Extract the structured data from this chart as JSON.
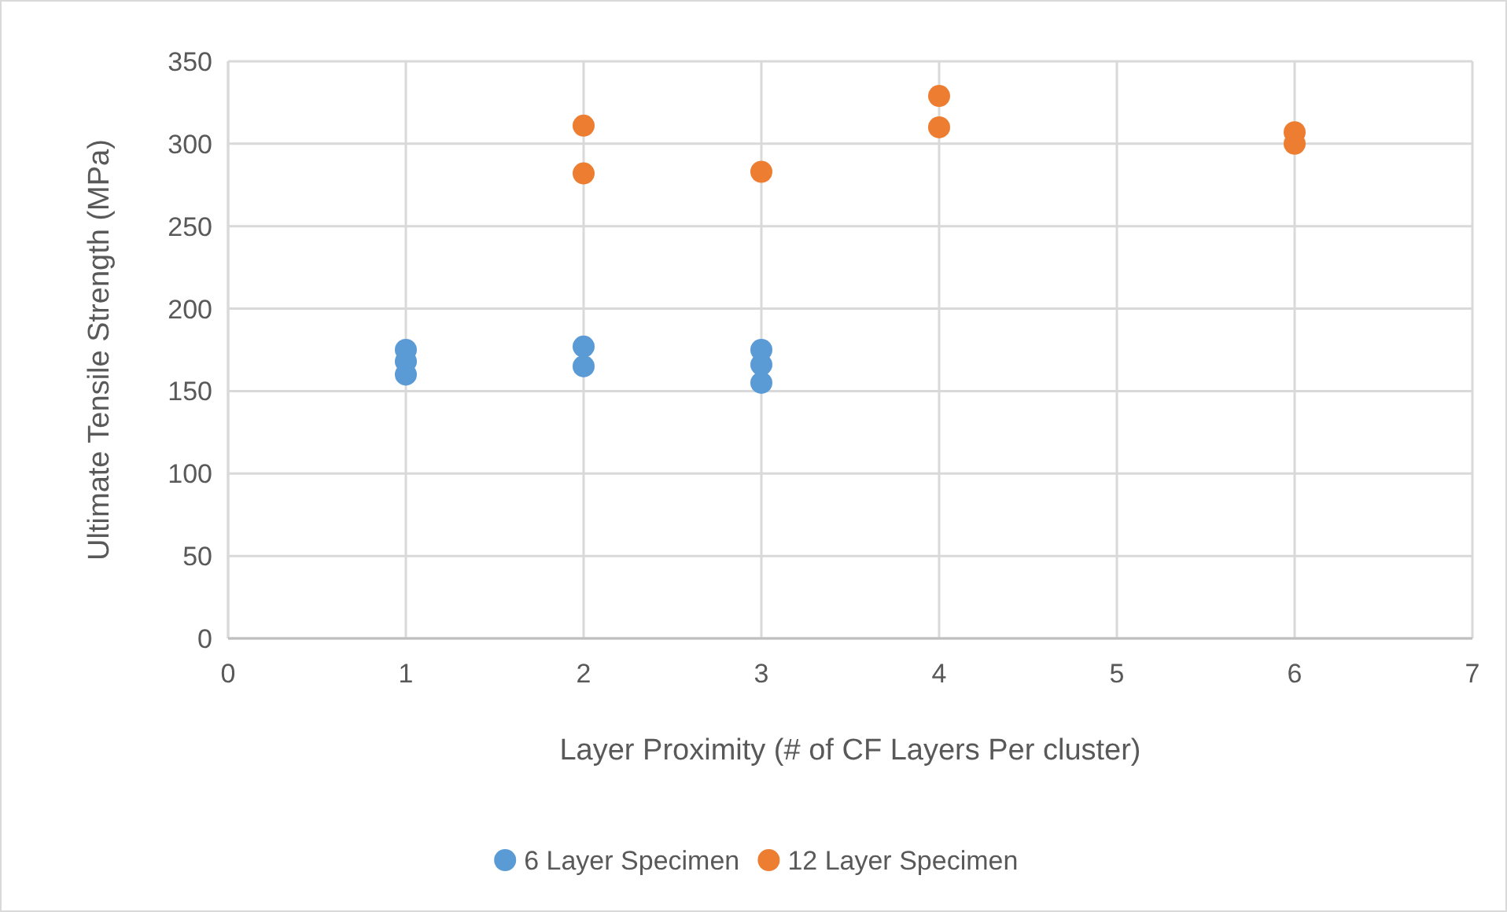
{
  "chart_data": {
    "type": "scatter",
    "xlabel": "Layer Proximity (# of CF Layers Per cluster)",
    "ylabel": "Ultimate Tensile Strength (MPa)",
    "xlim": [
      0,
      7
    ],
    "xticks": [
      0,
      1,
      2,
      3,
      4,
      5,
      6,
      7
    ],
    "ylim": [
      0,
      350
    ],
    "yticks": [
      0,
      50,
      100,
      150,
      200,
      250,
      300,
      350
    ],
    "grid": true,
    "legend": "bottom",
    "marker": "circle",
    "series": [
      {
        "name": "6 Layer Specimen",
        "color": "#5b9bd5",
        "x": [
          1,
          1,
          1,
          2,
          2,
          3,
          3,
          3
        ],
        "values": [
          175,
          168,
          160,
          177,
          165,
          175,
          166,
          155
        ]
      },
      {
        "name": "12 Layer Specimen",
        "color": "#ed7d31",
        "x": [
          2,
          2,
          3,
          4,
          4,
          6,
          6
        ],
        "values": [
          311,
          282,
          283,
          329,
          310,
          307,
          300
        ]
      }
    ]
  }
}
